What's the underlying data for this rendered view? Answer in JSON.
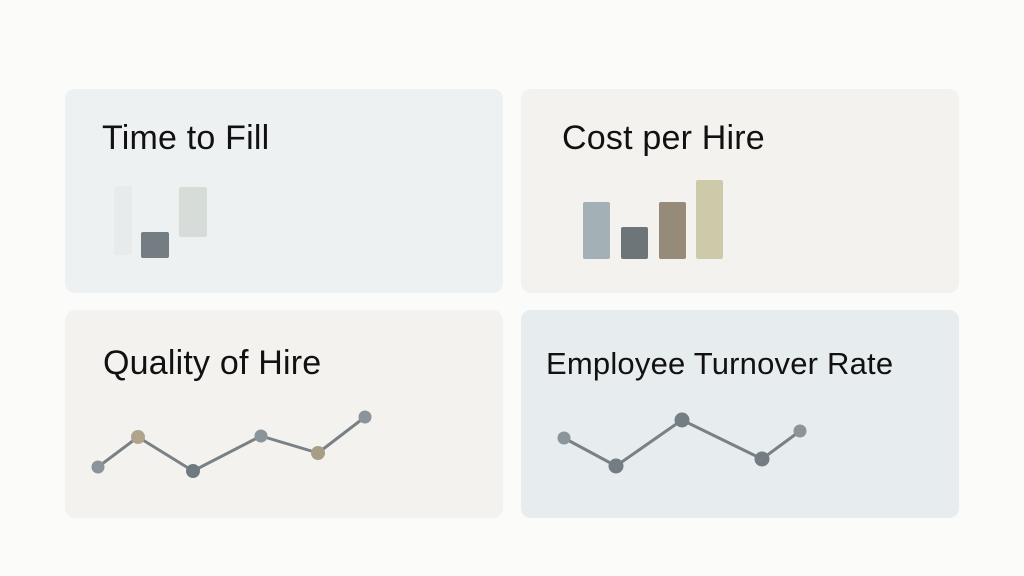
{
  "cards": {
    "time_to_fill": {
      "title": "Time to Fill",
      "background": "#eef1f2",
      "bar_colors": [
        "#e8ebec",
        "#747d82",
        "#d6dcd7"
      ]
    },
    "cost_per_hire": {
      "title": "Cost per Hire",
      "background": "#f4f2ee",
      "bar_colors": [
        "#a3b0b5",
        "#6e7579",
        "#958b78",
        "#cccaa9"
      ]
    },
    "quality_of_hire": {
      "title": "Quality of Hire",
      "background": "#f4f2ee",
      "line_color": "#7a8186",
      "point_colors": [
        "#8a949a",
        "#b0a48c",
        "#6f7980",
        "#8a949a",
        "#a89e86",
        "#8a949a"
      ]
    },
    "employee_turnover_rate": {
      "title": "Employee Turnover Rate",
      "background": "#e7ecef",
      "line_color": "#7a8186",
      "point_colors": [
        "#8a949a",
        "#737d83",
        "#737d83",
        "#737d83",
        "#8a949a"
      ]
    }
  }
}
